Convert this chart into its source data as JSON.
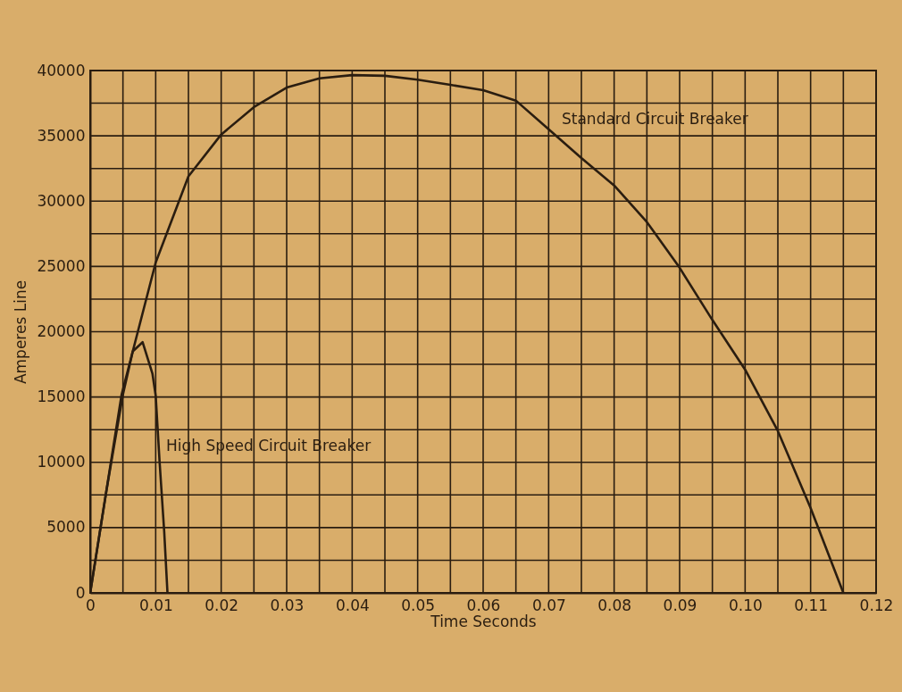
{
  "chart_data": {
    "type": "line",
    "xlabel": "Time Seconds",
    "ylabel": "Amperes Line",
    "xlim": [
      0,
      0.12
    ],
    "ylim": [
      0,
      40000
    ],
    "xticks": [
      0,
      {
        "value": 0.005,
        "label": null
      },
      0.01,
      {
        "value": 0.015,
        "label": null
      },
      0.02,
      {
        "value": 0.025,
        "label": null
      },
      0.03,
      {
        "value": 0.035,
        "label": null
      },
      0.04,
      {
        "value": 0.045,
        "label": null
      },
      0.05,
      {
        "value": 0.055,
        "label": null
      },
      0.06,
      {
        "value": 0.065,
        "label": null
      },
      0.07,
      {
        "value": 0.075,
        "label": null
      },
      0.08,
      {
        "value": 0.085,
        "label": null
      },
      0.09,
      {
        "value": 0.095,
        "label": null
      },
      {
        "value": 0.1,
        "label": "0.10"
      },
      {
        "value": 0.105,
        "label": null
      },
      0.11,
      {
        "value": 0.115,
        "label": null
      },
      0.12
    ],
    "yticks": [
      0,
      {
        "value": 2500,
        "label": null
      },
      5000,
      {
        "value": 7500,
        "label": null
      },
      10000,
      {
        "value": 12500,
        "label": null
      },
      15000,
      {
        "value": 17500,
        "label": null
      },
      20000,
      {
        "value": 22500,
        "label": null
      },
      25000,
      {
        "value": 27500,
        "label": null
      },
      30000,
      {
        "value": 32500,
        "label": null
      },
      35000,
      {
        "value": 37500,
        "label": null
      },
      40000
    ],
    "grid": true,
    "legend": false,
    "marker": "none",
    "line_style": "solid",
    "series": [
      {
        "name": "Standard Circuit Breaker",
        "color": "#2a1d10",
        "x": [
          0,
          0.0048,
          0.01,
          0.015,
          0.02,
          0.025,
          0.03,
          0.035,
          0.04,
          0.045,
          0.05,
          0.055,
          0.06,
          0.065,
          0.07,
          0.075,
          0.08,
          0.085,
          0.09,
          0.095,
          0.1,
          0.105,
          0.11,
          0.115
        ],
        "values": [
          0,
          15200,
          25300,
          31900,
          35100,
          37200,
          38700,
          39400,
          39650,
          39600,
          39300,
          38900,
          38500,
          37700,
          35500,
          33300,
          31200,
          28400,
          24900,
          20900,
          17100,
          12400,
          6500,
          0
        ]
      },
      {
        "name": "High Speed Circuit Breaker",
        "color": "#2a1d10",
        "x": [
          0,
          0.0025,
          0.005,
          0.0065,
          0.008,
          0.0095,
          0.01,
          0.0106,
          0.0113,
          0.0118
        ],
        "values": [
          0,
          7900,
          15200,
          18500,
          19200,
          16800,
          15100,
          10000,
          4700,
          0
        ]
      }
    ]
  }
}
